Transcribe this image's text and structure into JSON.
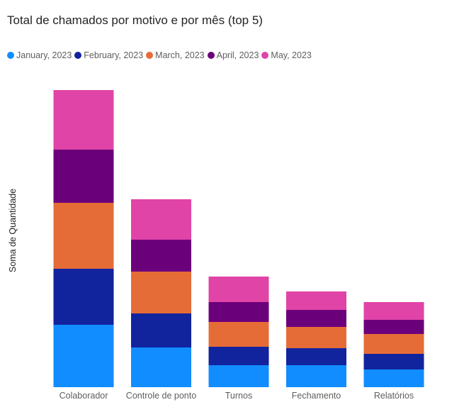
{
  "chart_data": {
    "type": "bar",
    "stacked": true,
    "title": "Total de chamados por motivo e por mês (top 5)",
    "ylabel": "Soma de Quantidade",
    "xlabel": "",
    "legend_position": "top-left",
    "grid": false,
    "categories": [
      "Colaborador",
      "Controle de ponto",
      "Turnos",
      "Fechamento",
      "Relatórios"
    ],
    "series": [
      {
        "name": "January, 2023",
        "color": "#118DFF",
        "values": [
          88,
          56,
          31,
          31,
          25
        ]
      },
      {
        "name": "February, 2023",
        "color": "#12239E",
        "values": [
          79,
          48,
          26,
          24,
          22
        ]
      },
      {
        "name": "March, 2023",
        "color": "#E66C37",
        "values": [
          93,
          59,
          35,
          30,
          28
        ]
      },
      {
        "name": "April, 2023",
        "color": "#6B007B",
        "values": [
          75,
          45,
          28,
          24,
          20
        ]
      },
      {
        "name": "May, 2023",
        "color": "#E044A7",
        "values": [
          84,
          57,
          36,
          26,
          25
        ]
      }
    ],
    "ylim": [
      0,
      419
    ]
  }
}
